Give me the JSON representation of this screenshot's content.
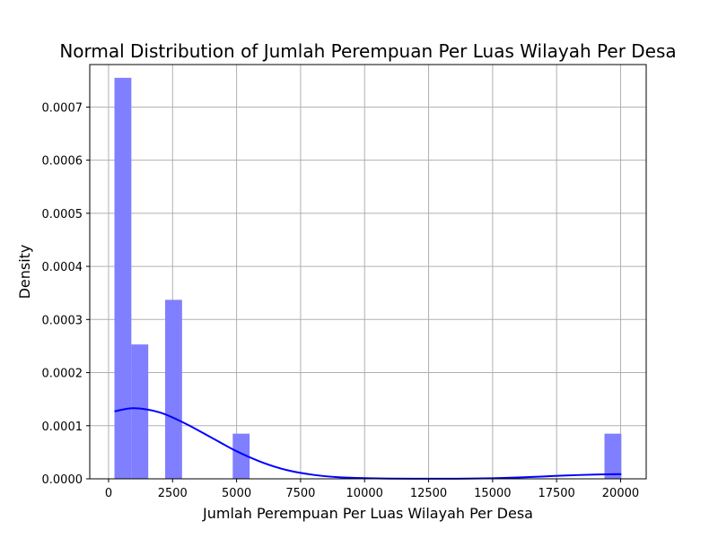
{
  "chart_data": {
    "type": "bar",
    "title": "Normal Distribution of Jumlah Perempuan Per Luas Wilayah Per Desa",
    "xlabel": "Jumlah Perempuan Per Luas Wilayah Per Desa",
    "ylabel": "Density",
    "xlim": [
      -735,
      21000
    ],
    "ylim": [
      0,
      0.00078
    ],
    "grid": true,
    "xticks": [
      0,
      2500,
      5000,
      7500,
      10000,
      12500,
      15000,
      17500,
      20000
    ],
    "xtick_labels": [
      "0",
      "2500",
      "5000",
      "7500",
      "10000",
      "12500",
      "15000",
      "17500",
      "20000"
    ],
    "yticks": [
      0,
      0.0001,
      0.0002,
      0.0003,
      0.0004,
      0.0005,
      0.0006,
      0.0007
    ],
    "ytick_labels": [
      "0.0000",
      "0.0001",
      "0.0002",
      "0.0003",
      "0.0004",
      "0.0005",
      "0.0006",
      "0.0007"
    ],
    "bin_width": 660,
    "histogram": [
      {
        "x_start": 230,
        "x_end": 890,
        "density": 0.000755
      },
      {
        "x_start": 890,
        "x_end": 1550,
        "density": 0.000253
      },
      {
        "x_start": 2210,
        "x_end": 2870,
        "density": 0.000337
      },
      {
        "x_start": 4850,
        "x_end": 5510,
        "density": 8.5e-05
      },
      {
        "x_start": 19370,
        "x_end": 20030,
        "density": 8.5e-05
      }
    ],
    "kde_curve": {
      "x": [
        230,
        1000,
        2000,
        3000,
        4000,
        5000,
        6000,
        7000,
        8000,
        9000,
        10000,
        11000,
        12000,
        13000,
        14000,
        15000,
        16000,
        17000,
        18000,
        19000,
        20030
      ],
      "y": [
        0.000127,
        0.000133,
        0.000125,
        0.000104,
        7.8e-05,
        5.2e-05,
        3.1e-05,
        1.6e-05,
        7.5e-06,
        3e-06,
        1.2e-06,
        4e-07,
        2e-07,
        2e-07,
        4e-07,
        1.1e-06,
        2.5e-06,
        4.5e-06,
        6.5e-06,
        8e-06,
        8.8e-06
      ]
    },
    "colors": {
      "bars": "#7f7fff",
      "curve": "#0000ff",
      "grid": "#b0b0b0"
    }
  }
}
